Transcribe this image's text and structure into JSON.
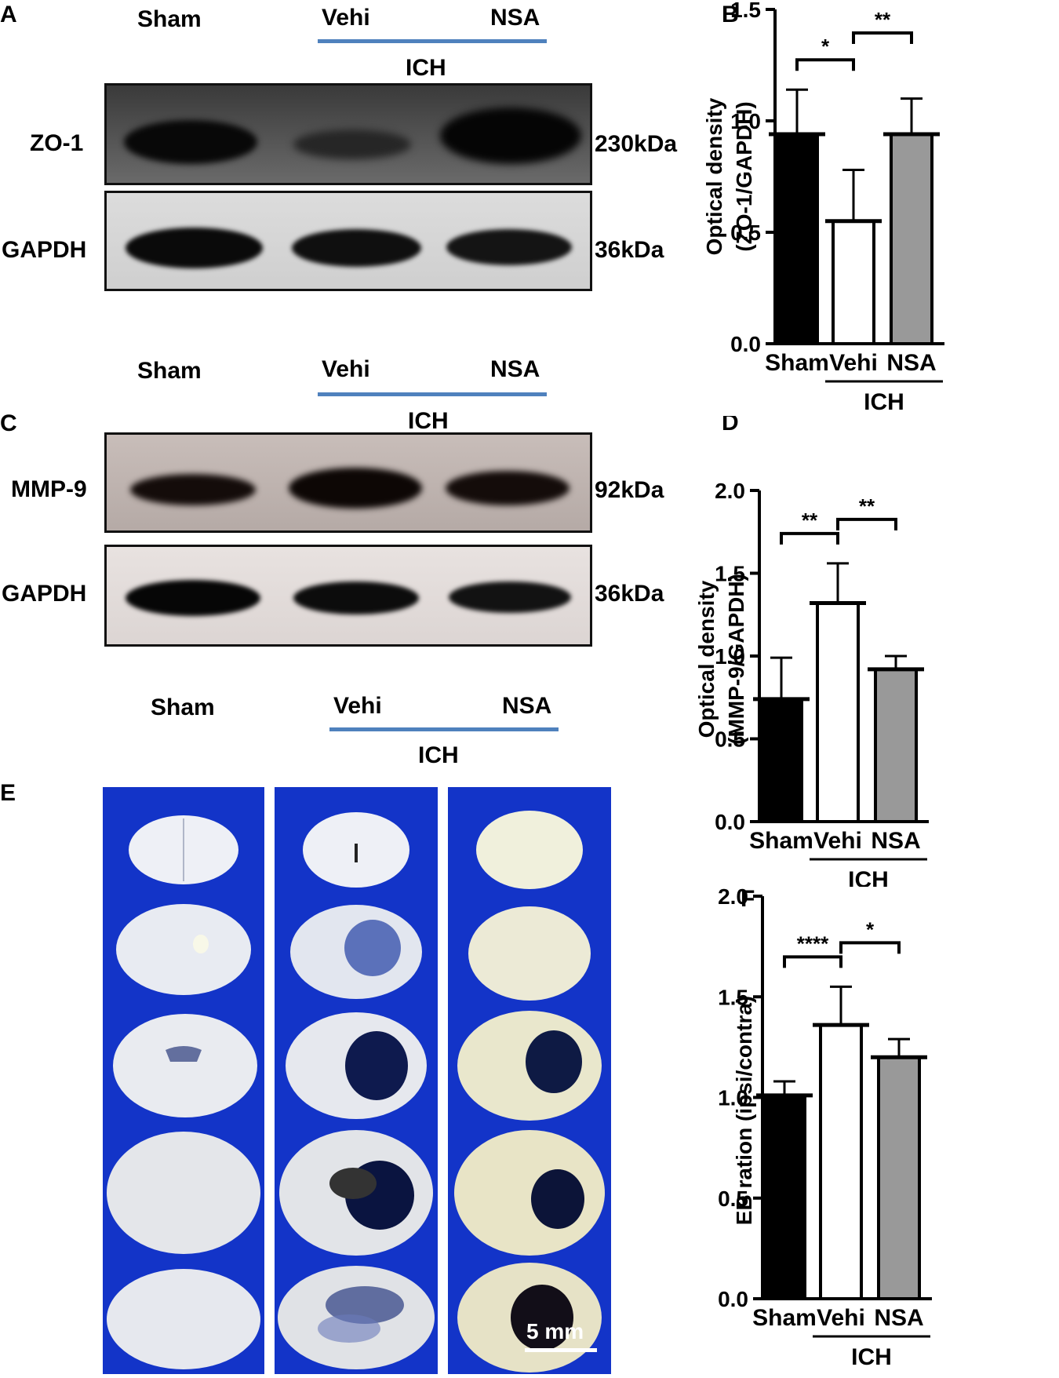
{
  "panels": {
    "A": {
      "letter": "A",
      "groups": [
        "Sham",
        "Vehi",
        "NSA"
      ],
      "bracket_label": "ICH",
      "rows": [
        {
          "label": "ZO-1",
          "size": "230kDa",
          "intensity": [
            0.85,
            0.45,
            0.95
          ]
        },
        {
          "label": "GAPDH",
          "size": "36kDa",
          "intensity": [
            0.9,
            0.85,
            0.8
          ]
        }
      ]
    },
    "C": {
      "letter": "C",
      "groups": [
        "Sham",
        "Vehi",
        "NSA"
      ],
      "bracket_label": "ICH",
      "rows": [
        {
          "label": "MMP-9",
          "size": "92kDa",
          "intensity": [
            0.75,
            0.9,
            0.8
          ]
        },
        {
          "label": "GAPDH",
          "size": "36kDa",
          "intensity": [
            0.95,
            0.9,
            0.85
          ]
        }
      ]
    },
    "E": {
      "letter": "E",
      "groups": [
        "Sham",
        "Vehi",
        "NSA"
      ],
      "bracket_label": "ICH",
      "scale_bar": "5 mm",
      "background_color": "#1334c8"
    }
  },
  "chart_data": [
    {
      "panel": "B",
      "type": "bar",
      "categories": [
        "Sham",
        "Vehi",
        "NSA"
      ],
      "group_label": "ICH",
      "values": [
        0.94,
        0.55,
        0.94
      ],
      "errors": [
        0.2,
        0.23,
        0.16
      ],
      "bar_colors": [
        "#000000",
        "#ffffff",
        "#999999"
      ],
      "ylabel_lines": [
        "Optical density",
        "(ZO-1/GAPDH)"
      ],
      "ylim": [
        0,
        1.5
      ],
      "yticks": [
        "0.0",
        "0.5",
        "1.0",
        "1.5"
      ],
      "significance": [
        {
          "from": 0,
          "to": 1,
          "label": "*"
        },
        {
          "from": 1,
          "to": 2,
          "label": "**"
        }
      ]
    },
    {
      "panel": "D",
      "type": "bar",
      "categories": [
        "Sham",
        "Vehi",
        "NSA"
      ],
      "group_label": "ICH",
      "values": [
        0.74,
        1.32,
        0.92
      ],
      "errors": [
        0.25,
        0.24,
        0.08
      ],
      "bar_colors": [
        "#000000",
        "#ffffff",
        "#999999"
      ],
      "ylabel_lines": [
        "Optical density",
        "(MMP-9/GAPDH)"
      ],
      "ylim": [
        0,
        2.0
      ],
      "yticks": [
        "0.0",
        "0.5",
        "1.0",
        "1.5",
        "2.0"
      ],
      "significance": [
        {
          "from": 0,
          "to": 1,
          "label": "**"
        },
        {
          "from": 1,
          "to": 2,
          "label": "**"
        }
      ]
    },
    {
      "panel": "F",
      "type": "bar",
      "categories": [
        "Sham",
        "Vehi",
        "NSA"
      ],
      "group_label": "ICH",
      "values": [
        1.01,
        1.36,
        1.2
      ],
      "errors": [
        0.07,
        0.19,
        0.09
      ],
      "bar_colors": [
        "#000000",
        "#ffffff",
        "#999999"
      ],
      "ylabel_lines": [
        "EB ration (ipsi/contra)"
      ],
      "ylim": [
        0,
        2.0
      ],
      "yticks": [
        "0.0",
        "0.5",
        "1.0",
        "1.5",
        "2.0"
      ],
      "significance": [
        {
          "from": 0,
          "to": 1,
          "label": "****"
        },
        {
          "from": 1,
          "to": 2,
          "label": "*"
        }
      ]
    }
  ]
}
